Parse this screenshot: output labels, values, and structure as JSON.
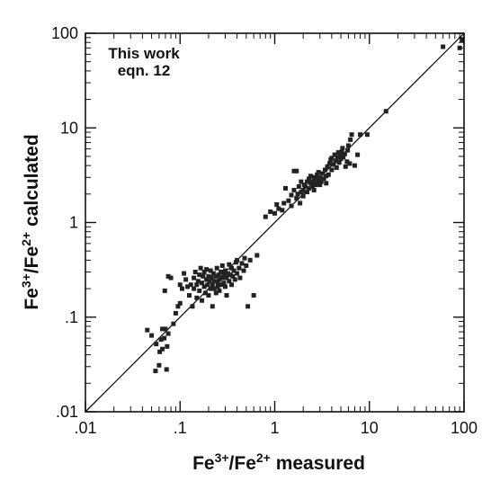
{
  "chart_data": {
    "type": "scatter",
    "x_scale": "log",
    "y_scale": "log",
    "xlim": [
      0.01,
      100
    ],
    "ylim": [
      0.01,
      100
    ],
    "grid": false,
    "reference_line": "1:1",
    "xlabel": {
      "base": "Fe",
      "sup1": "3+",
      "mid": "/Fe",
      "sup2": "2+",
      "rest": " measured"
    },
    "ylabel": {
      "base": "Fe",
      "sup1": "3+",
      "mid": "/Fe",
      "sup2": "2+",
      "rest": " calculated"
    },
    "x_tick_labels": [
      ".01",
      ".1",
      "1",
      "10",
      "100"
    ],
    "y_tick_labels": [
      ".01",
      ".1",
      "1",
      "10",
      "100"
    ],
    "annotation": [
      "This work",
      "eqn. 12"
    ],
    "points": [
      [
        0.045,
        0.073
      ],
      [
        0.05,
        0.064
      ],
      [
        0.055,
        0.027
      ],
      [
        0.056,
        0.052
      ],
      [
        0.06,
        0.031
      ],
      [
        0.061,
        0.043
      ],
      [
        0.063,
        0.058
      ],
      [
        0.065,
        0.075
      ],
      [
        0.065,
        0.046
      ],
      [
        0.068,
        0.06
      ],
      [
        0.07,
        0.075
      ],
      [
        0.072,
        0.028
      ],
      [
        0.073,
        0.049
      ],
      [
        0.075,
        0.067
      ],
      [
        0.069,
        0.19
      ],
      [
        0.075,
        0.27
      ],
      [
        0.08,
        0.26
      ],
      [
        0.085,
        0.085
      ],
      [
        0.09,
        0.11
      ],
      [
        0.095,
        0.13
      ],
      [
        0.1,
        0.14
      ],
      [
        0.1,
        0.22
      ],
      [
        0.105,
        0.2
      ],
      [
        0.11,
        0.29
      ],
      [
        0.115,
        0.25
      ],
      [
        0.12,
        0.21
      ],
      [
        0.125,
        0.17
      ],
      [
        0.13,
        0.22
      ],
      [
        0.135,
        0.13
      ],
      [
        0.14,
        0.2
      ],
      [
        0.14,
        0.26
      ],
      [
        0.145,
        0.3
      ],
      [
        0.15,
        0.22
      ],
      [
        0.15,
        0.16
      ],
      [
        0.155,
        0.24
      ],
      [
        0.16,
        0.28
      ],
      [
        0.16,
        0.19
      ],
      [
        0.165,
        0.33
      ],
      [
        0.17,
        0.23
      ],
      [
        0.17,
        0.15
      ],
      [
        0.175,
        0.27
      ],
      [
        0.18,
        0.21
      ],
      [
        0.18,
        0.3
      ],
      [
        0.185,
        0.18
      ],
      [
        0.19,
        0.25
      ],
      [
        0.19,
        0.32
      ],
      [
        0.195,
        0.22
      ],
      [
        0.2,
        0.27
      ],
      [
        0.2,
        0.17
      ],
      [
        0.205,
        0.24
      ],
      [
        0.21,
        0.2
      ],
      [
        0.21,
        0.31
      ],
      [
        0.215,
        0.26
      ],
      [
        0.22,
        0.22
      ],
      [
        0.22,
        0.13
      ],
      [
        0.225,
        0.29
      ],
      [
        0.23,
        0.2
      ],
      [
        0.23,
        0.24
      ],
      [
        0.24,
        0.27
      ],
      [
        0.24,
        0.18
      ],
      [
        0.245,
        0.33
      ],
      [
        0.25,
        0.23
      ],
      [
        0.25,
        0.21
      ],
      [
        0.255,
        0.28
      ],
      [
        0.26,
        0.25
      ],
      [
        0.26,
        0.19
      ],
      [
        0.27,
        0.3
      ],
      [
        0.27,
        0.22
      ],
      [
        0.28,
        0.26
      ],
      [
        0.28,
        0.35
      ],
      [
        0.29,
        0.23
      ],
      [
        0.29,
        0.28
      ],
      [
        0.3,
        0.21
      ],
      [
        0.3,
        0.31
      ],
      [
        0.31,
        0.26
      ],
      [
        0.31,
        0.17
      ],
      [
        0.32,
        0.29
      ],
      [
        0.33,
        0.24
      ],
      [
        0.33,
        0.36
      ],
      [
        0.34,
        0.28
      ],
      [
        0.35,
        0.22
      ],
      [
        0.35,
        0.33
      ],
      [
        0.36,
        0.27
      ],
      [
        0.37,
        0.31
      ],
      [
        0.38,
        0.25
      ],
      [
        0.39,
        0.38
      ],
      [
        0.4,
        0.29
      ],
      [
        0.4,
        0.4
      ],
      [
        0.42,
        0.33
      ],
      [
        0.43,
        0.26
      ],
      [
        0.45,
        0.37
      ],
      [
        0.47,
        0.31
      ],
      [
        0.48,
        0.42
      ],
      [
        0.5,
        0.35
      ],
      [
        0.52,
        0.13
      ],
      [
        0.55,
        0.4
      ],
      [
        0.6,
        0.17
      ],
      [
        0.65,
        0.45
      ],
      [
        0.8,
        1.15
      ],
      [
        0.9,
        1.3
      ],
      [
        1.0,
        1.25
      ],
      [
        1.05,
        1.55
      ],
      [
        1.1,
        1.4
      ],
      [
        1.2,
        1.35
      ],
      [
        1.25,
        1.6
      ],
      [
        1.3,
        2.3
      ],
      [
        1.4,
        1.7
      ],
      [
        1.5,
        1.5
      ],
      [
        1.5,
        1.95
      ],
      [
        1.6,
        2.2
      ],
      [
        1.6,
        3.5
      ],
      [
        1.7,
        3.5
      ],
      [
        1.7,
        1.8
      ],
      [
        1.75,
        2.0
      ],
      [
        1.8,
        2.4
      ],
      [
        1.85,
        1.6
      ],
      [
        1.9,
        2.1
      ],
      [
        1.9,
        2.7
      ],
      [
        2.0,
        2.2
      ],
      [
        2.0,
        1.9
      ],
      [
        2.05,
        2.5
      ],
      [
        2.1,
        2.4
      ],
      [
        2.2,
        2.1
      ],
      [
        2.2,
        2.7
      ],
      [
        2.3,
        2.3
      ],
      [
        2.3,
        2.9
      ],
      [
        2.4,
        2.6
      ],
      [
        2.4,
        3.1
      ],
      [
        2.5,
        2.4
      ],
      [
        2.5,
        2.7
      ],
      [
        2.6,
        2.2
      ],
      [
        2.6,
        3.0
      ],
      [
        2.7,
        2.9
      ],
      [
        2.7,
        2.5
      ],
      [
        2.8,
        3.2
      ],
      [
        2.8,
        2.6
      ],
      [
        2.9,
        2.8
      ],
      [
        2.9,
        3.4
      ],
      [
        3.0,
        3.0
      ],
      [
        3.0,
        2.5
      ],
      [
        3.1,
        2.7
      ],
      [
        3.2,
        3.3
      ],
      [
        3.3,
        2.9
      ],
      [
        3.4,
        3.6
      ],
      [
        3.5,
        3.1
      ],
      [
        3.5,
        2.6
      ],
      [
        3.6,
        3.9
      ],
      [
        3.7,
        3.2
      ],
      [
        3.8,
        4.2
      ],
      [
        3.9,
        4.6
      ],
      [
        4.0,
        3.6
      ],
      [
        4.0,
        4.8
      ],
      [
        4.2,
        4.1
      ],
      [
        4.3,
        5.2
      ],
      [
        4.4,
        4.5
      ],
      [
        4.5,
        3.8
      ],
      [
        4.6,
        4.9
      ],
      [
        4.7,
        5.5
      ],
      [
        4.8,
        4.3
      ],
      [
        4.9,
        5.1
      ],
      [
        5.0,
        4.7
      ],
      [
        5.1,
        5.6
      ],
      [
        5.2,
        6.1
      ],
      [
        5.3,
        4.9
      ],
      [
        5.5,
        5.3
      ],
      [
        5.6,
        3.9
      ],
      [
        5.8,
        4.4
      ],
      [
        5.9,
        5.8
      ],
      [
        6.0,
        6.5
      ],
      [
        6.2,
        4.2
      ],
      [
        6.3,
        7.5
      ],
      [
        6.5,
        8.5
      ],
      [
        7.0,
        4.0
      ],
      [
        7.5,
        5.2
      ],
      [
        8.0,
        8.5
      ],
      [
        9.5,
        8.5
      ],
      [
        15.0,
        15.0
      ],
      [
        60.0,
        72.0
      ],
      [
        90.0,
        70.0
      ],
      [
        95.0,
        85.0
      ]
    ]
  }
}
